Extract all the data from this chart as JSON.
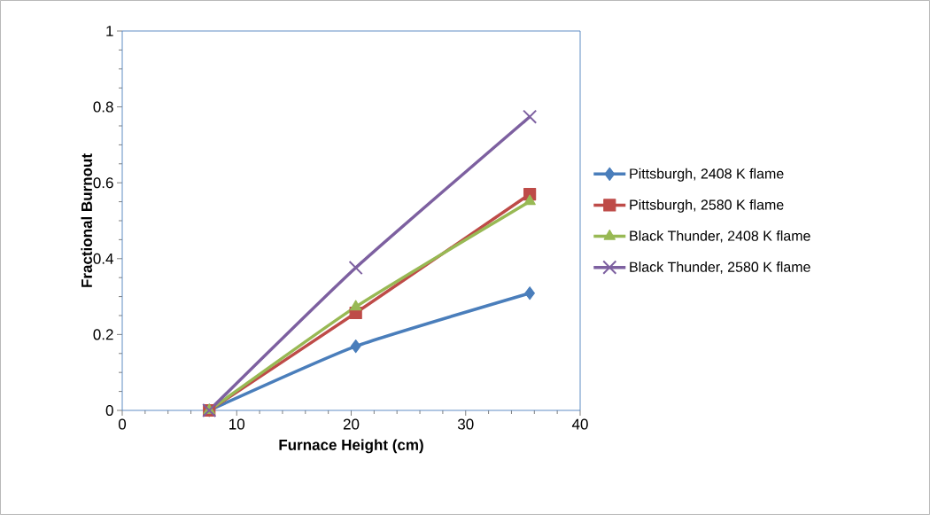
{
  "chart_data": {
    "type": "line",
    "xlabel": "Furnace Height (cm)",
    "ylabel": "Fractional Burnout",
    "xlim": [
      0,
      40
    ],
    "xticks": [
      0,
      10,
      20,
      30,
      40
    ],
    "ylim": [
      0,
      1
    ],
    "yticks": [
      0,
      0.2,
      0.4,
      0.6,
      0.8,
      1
    ],
    "x": [
      7.6,
      20.4,
      35.6
    ],
    "series": [
      {
        "name": "Pittsburgh, 2408 K flame",
        "color": "#4a7ebb",
        "marker": "diamond",
        "values": [
          0,
          0.169,
          0.309
        ]
      },
      {
        "name": "Pittsburgh, 2580 K flame",
        "color": "#be4b48",
        "marker": "square",
        "values": [
          0,
          0.257,
          0.57
        ]
      },
      {
        "name": "Black Thunder, 2408 K flame",
        "color": "#98b954",
        "marker": "triangle",
        "values": [
          0,
          0.273,
          0.551
        ]
      },
      {
        "name": "Black Thunder, 2580 K flame",
        "color": "#7d60a0",
        "marker": "cross",
        "values": [
          0,
          0.376,
          0.774
        ]
      }
    ],
    "legend": "right",
    "line_style": "solid"
  }
}
